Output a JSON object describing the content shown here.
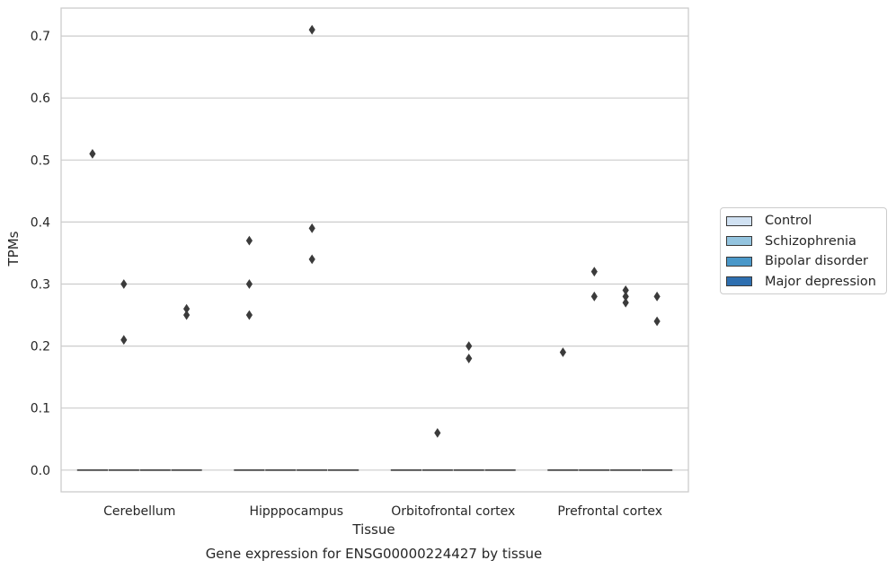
{
  "chart_data": {
    "type": "boxplot",
    "title": "Gene expression for ENSG00000224427 by tissue",
    "xlabel": "Tissue",
    "ylabel": "TPMs",
    "ylim": [
      -0.035,
      0.745
    ],
    "yticks": [
      "0.0",
      "0.1",
      "0.2",
      "0.3",
      "0.4",
      "0.5",
      "0.6",
      "0.7"
    ],
    "grid": true,
    "legend_position": "right",
    "categories": [
      "Cerebellum",
      "Hipppocampus",
      "Orbitofrontal cortex",
      "Prefrontal cortex"
    ],
    "series": [
      {
        "name": "Control",
        "color": "#d0e1f2",
        "median": [
          0,
          0,
          0,
          0
        ],
        "outliers": [
          [
            0.51
          ],
          [
            0.37,
            0.3,
            0.25
          ],
          [],
          [
            0.19
          ]
        ]
      },
      {
        "name": "Schizophrenia",
        "color": "#94c4df",
        "median": [
          0,
          0,
          0,
          0
        ],
        "outliers": [
          [
            0.3,
            0.21
          ],
          [],
          [
            0.06
          ],
          [
            0.32,
            0.28
          ]
        ]
      },
      {
        "name": "Bipolar disorder",
        "color": "#4a98c9",
        "median": [
          0,
          0,
          0,
          0
        ],
        "outliers": [
          [],
          [
            0.71,
            0.39,
            0.34
          ],
          [
            0.2,
            0.18
          ],
          [
            0.29,
            0.28,
            0.27
          ]
        ]
      },
      {
        "name": "Major depression",
        "color": "#2e6fb0",
        "median": [
          0,
          0,
          0,
          0
        ],
        "outliers": [
          [
            0.26,
            0.25
          ],
          [],
          [],
          [
            0.28,
            0.24
          ]
        ]
      }
    ]
  }
}
